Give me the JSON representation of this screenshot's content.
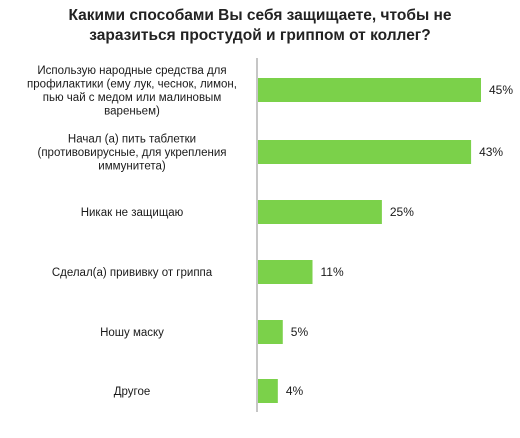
{
  "chart_data": {
    "type": "bar",
    "orientation": "horizontal",
    "title_lines": [
      "Какими способами Вы себя защищаете, чтобы не",
      "заразиться простудой и гриппом от коллег?"
    ],
    "categories": [
      [
        "Использую народные средства для",
        "профилактики (ему лук, чеснок, лимон,",
        "пью чай с медом или малиновым",
        "вареньем)"
      ],
      [
        "Начал (а) пить таблетки",
        "(противовирусные, для укрепления",
        "иммунитета)"
      ],
      [
        "Никак не защищаю"
      ],
      [
        "Сделал(а) прививку от гриппа"
      ],
      [
        "Ношу маску"
      ],
      [
        "Другое"
      ]
    ],
    "values": [
      45,
      43,
      25,
      11,
      5,
      4
    ],
    "value_labels": [
      "45%",
      "43%",
      "25%",
      "11%",
      "5%",
      "4%"
    ],
    "unit": "%",
    "xlim": [
      0,
      45
    ],
    "bar_color": "#7bd14a",
    "axis_color": "#8c8c8c"
  }
}
